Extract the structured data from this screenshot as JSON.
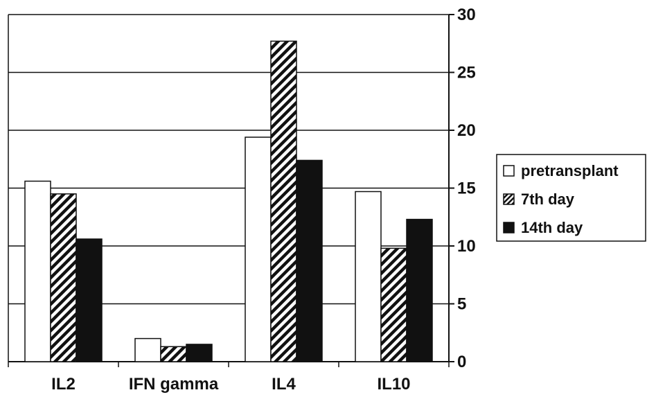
{
  "chart_data": {
    "type": "bar",
    "categories": [
      "IL2",
      "IFN gamma",
      "IL4",
      "IL10"
    ],
    "series": [
      {
        "name": "pretransplant",
        "values": [
          15.6,
          2.0,
          19.4,
          14.7
        ],
        "pattern": "white"
      },
      {
        "name": "7th day",
        "values": [
          14.5,
          1.3,
          27.7,
          9.8
        ],
        "pattern": "hatched"
      },
      {
        "name": "14th day",
        "values": [
          10.6,
          1.5,
          17.4,
          12.3
        ],
        "pattern": "black"
      }
    ],
    "ylim": [
      0,
      30
    ],
    "yticks": [
      "0",
      "5",
      "10",
      "15",
      "20",
      "25",
      "30"
    ],
    "y_axis_side": "right",
    "grid": true,
    "legend_position": "right",
    "colors": {
      "fill_white": "#ffffff",
      "fill_black": "#111111",
      "stroke": "#111111"
    }
  }
}
